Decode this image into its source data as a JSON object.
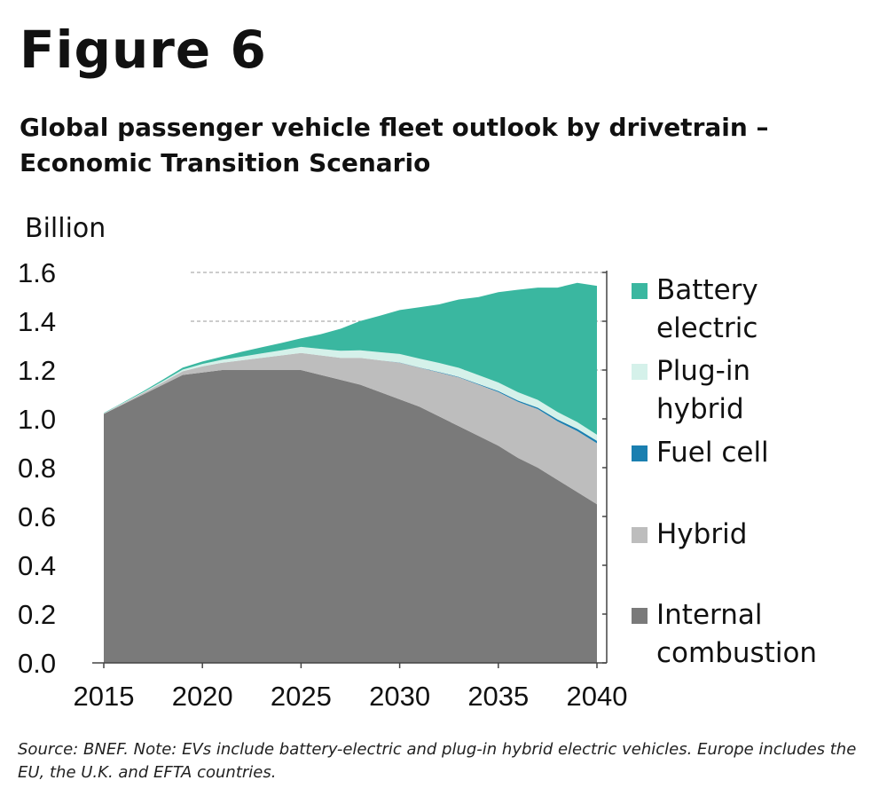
{
  "figure_label": "Figure 6",
  "title": "Global passenger vehicle fleet outlook by drivetrain – Economic Transition Scenario",
  "unit_label": "Billion",
  "source_note": "Source: BNEF. Note: EVs include battery-electric and plug-in hybrid electric vehicles. Europe includes the EU, the U.K. and EFTA countries.",
  "chart_data": {
    "type": "area",
    "stacked": true,
    "x": [
      2015,
      2016,
      2017,
      2018,
      2019,
      2020,
      2021,
      2022,
      2023,
      2024,
      2025,
      2026,
      2027,
      2028,
      2029,
      2030,
      2031,
      2032,
      2033,
      2034,
      2035,
      2036,
      2037,
      2038,
      2039,
      2040
    ],
    "xticks": [
      "2015",
      "2020",
      "2025",
      "2030",
      "2035",
      "2040"
    ],
    "yticks": [
      "0.0",
      "0.2",
      "0.4",
      "0.6",
      "0.8",
      "1.0",
      "1.2",
      "1.4",
      "1.6"
    ],
    "ylim": [
      0,
      1.6
    ],
    "xlim": [
      2015,
      2040
    ],
    "grid": "horizontal dashed at 1.2, 1.4, 1.6",
    "series": [
      {
        "name": "Internal combustion",
        "color": "#7a7a7a",
        "values": [
          1.02,
          1.06,
          1.1,
          1.14,
          1.18,
          1.19,
          1.2,
          1.2,
          1.2,
          1.2,
          1.2,
          1.18,
          1.16,
          1.14,
          1.11,
          1.08,
          1.05,
          1.01,
          0.97,
          0.93,
          0.89,
          0.84,
          0.8,
          0.75,
          0.7,
          0.65
        ]
      },
      {
        "name": "Hybrid",
        "color": "#bdbdbd",
        "values": [
          0.002,
          0.004,
          0.006,
          0.01,
          0.015,
          0.025,
          0.03,
          0.04,
          0.05,
          0.06,
          0.07,
          0.08,
          0.09,
          0.11,
          0.13,
          0.15,
          0.16,
          0.18,
          0.2,
          0.21,
          0.22,
          0.23,
          0.24,
          0.24,
          0.25,
          0.25
        ]
      },
      {
        "name": "Fuel cell",
        "color": "#1a7fb0",
        "values": [
          0,
          0,
          0,
          0,
          0,
          0,
          0,
          0,
          0,
          0,
          0,
          0,
          0,
          0,
          0,
          0.001,
          0.001,
          0.002,
          0.002,
          0.003,
          0.004,
          0.005,
          0.006,
          0.008,
          0.009,
          0.01
        ]
      },
      {
        "name": "Plug-in hybrid",
        "color": "#d5f1ea",
        "values": [
          0.001,
          0.002,
          0.003,
          0.005,
          0.007,
          0.01,
          0.012,
          0.015,
          0.018,
          0.021,
          0.025,
          0.027,
          0.029,
          0.031,
          0.033,
          0.035,
          0.036,
          0.037,
          0.037,
          0.036,
          0.035,
          0.034,
          0.032,
          0.03,
          0.028,
          0.025
        ]
      },
      {
        "name": "Battery electric",
        "color": "#3ab7a0",
        "values": [
          0.001,
          0.002,
          0.004,
          0.006,
          0.008,
          0.01,
          0.013,
          0.02,
          0.025,
          0.03,
          0.035,
          0.06,
          0.09,
          0.12,
          0.15,
          0.18,
          0.21,
          0.24,
          0.28,
          0.32,
          0.37,
          0.42,
          0.46,
          0.51,
          0.57,
          0.61
        ]
      }
    ],
    "legend_order": [
      "Battery electric",
      "Plug-in hybrid",
      "Fuel cell",
      "Hybrid",
      "Internal combustion"
    ],
    "legend_labels": [
      "Battery\nelectric",
      "Plug-in\nhybrid",
      "Fuel cell",
      "Hybrid",
      "Internal\ncombustion"
    ],
    "legend_placement": "right"
  }
}
